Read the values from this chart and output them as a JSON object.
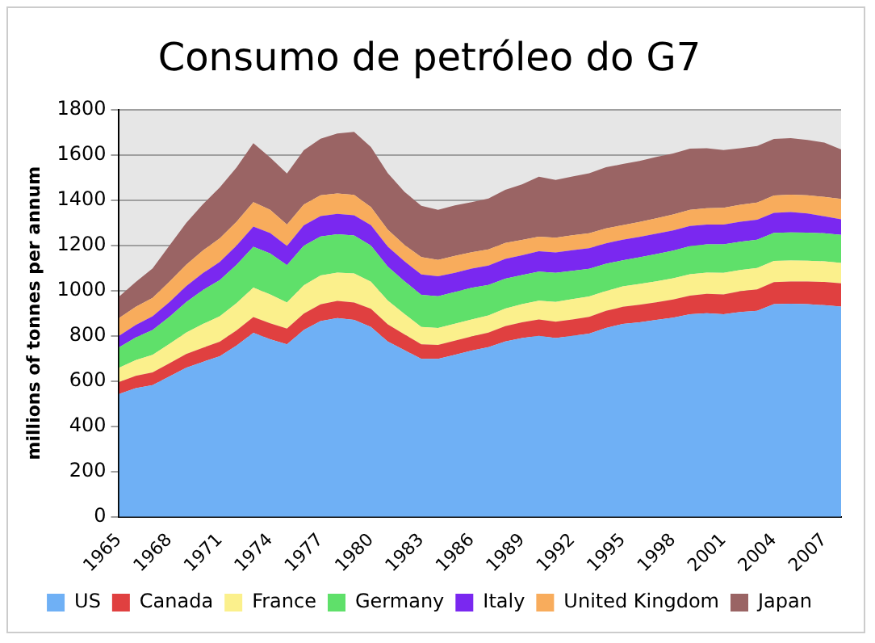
{
  "chart_data": {
    "type": "area",
    "stacked": true,
    "title": "Consumo de petróleo do G7",
    "ylabel": "millions of tonnes per annum",
    "categories": [
      "1965",
      null,
      null,
      "1968",
      null,
      null,
      "1971",
      null,
      null,
      "1974",
      null,
      null,
      "1977",
      null,
      null,
      "1980",
      null,
      null,
      "1983",
      null,
      null,
      "1986",
      null,
      null,
      "1989",
      null,
      null,
      "1992",
      null,
      null,
      "1995",
      null,
      null,
      "1998",
      null,
      null,
      "2001",
      null,
      null,
      "2004",
      null,
      null,
      "2007",
      null
    ],
    "ylim": [
      0,
      1800
    ],
    "yticks": [
      0,
      200,
      400,
      600,
      800,
      1000,
      1200,
      1400,
      1600,
      1800
    ],
    "grid": "y",
    "legend": "bottom",
    "series": [
      {
        "name": "US",
        "color": "#6fb0f5",
        "values": [
          543,
          569,
          582,
          620,
          659,
          685,
          710,
          757,
          813,
          785,
          762,
          826,
          865,
          878,
          870,
          839,
          775,
          736,
          698,
          698,
          716,
          735,
          750,
          775,
          790,
          800,
          790,
          800,
          810,
          835,
          852,
          860,
          870,
          880,
          895,
          900,
          895,
          905,
          910,
          940,
          942,
          940,
          935,
          929
        ]
      },
      {
        "name": "Canada",
        "color": "#e04040",
        "values": [
          52,
          54,
          56,
          58,
          60,
          62,
          64,
          67,
          70,
          70,
          70,
          72,
          74,
          76,
          77,
          80,
          76,
          70,
          64,
          62,
          62,
          62,
          64,
          68,
          70,
          72,
          72,
          72,
          74,
          75,
          76,
          77,
          78,
          80,
          82,
          85,
          88,
          92,
          95,
          97,
          98,
          100,
          103,
          103
        ]
      },
      {
        "name": "France",
        "color": "#fbf08c",
        "values": [
          64,
          70,
          78,
          86,
          95,
          105,
          112,
          120,
          130,
          128,
          115,
          125,
          128,
          125,
          129,
          120,
          105,
          90,
          77,
          75,
          75,
          75,
          76,
          77,
          80,
          83,
          88,
          90,
          90,
          88,
          90,
          92,
          93,
          94,
          95,
          94,
          95,
          94,
          95,
          94,
          93,
          92,
          91,
          90
        ]
      },
      {
        "name": "Germany",
        "color": "#5fe06a",
        "values": [
          90,
          100,
          110,
          120,
          135,
          150,
          160,
          170,
          180,
          181,
          165,
          175,
          172,
          170,
          167,
          160,
          150,
          145,
          142,
          140,
          140,
          140,
          135,
          132,
          128,
          129,
          128,
          125,
          122,
          120,
          116,
          118,
          120,
          122,
          124,
          125,
          126,
          125,
          125,
          124,
          124,
          124,
          124,
          124
        ]
      },
      {
        "name": "Italy",
        "color": "#7a28f0",
        "values": [
          51,
          55,
          60,
          65,
          70,
          75,
          80,
          85,
          90,
          90,
          85,
          90,
          90,
          90,
          90,
          90,
          88,
          88,
          90,
          88,
          85,
          85,
          85,
          88,
          88,
          90,
          90,
          91,
          91,
          91,
          91,
          90,
          90,
          90,
          89,
          88,
          88,
          88,
          88,
          88,
          90,
          85,
          75,
          69
        ]
      },
      {
        "name": "United Kingdom",
        "color": "#f8ac5c",
        "values": [
          78,
          80,
          82,
          90,
          95,
          100,
          105,
          105,
          108,
          103,
          95,
          92,
          92,
          90,
          90,
          80,
          75,
          72,
          77,
          72,
          75,
          72,
          72,
          70,
          68,
          64,
          66,
          66,
          66,
          66,
          64,
          66,
          68,
          70,
          72,
          72,
          74,
          75,
          76,
          77,
          77,
          80,
          86,
          90
        ]
      },
      {
        "name": "Japan",
        "color": "#9a6464",
        "values": [
          95,
          110,
          130,
          160,
          185,
          205,
          225,
          240,
          260,
          231,
          225,
          240,
          250,
          265,
          278,
          265,
          250,
          235,
          227,
          222,
          223,
          222,
          225,
          235,
          245,
          265,
          255,
          260,
          265,
          270,
          270,
          270,
          272,
          270,
          270,
          265,
          255,
          250,
          250,
          250,
          250,
          245,
          240,
          219
        ]
      }
    ]
  }
}
